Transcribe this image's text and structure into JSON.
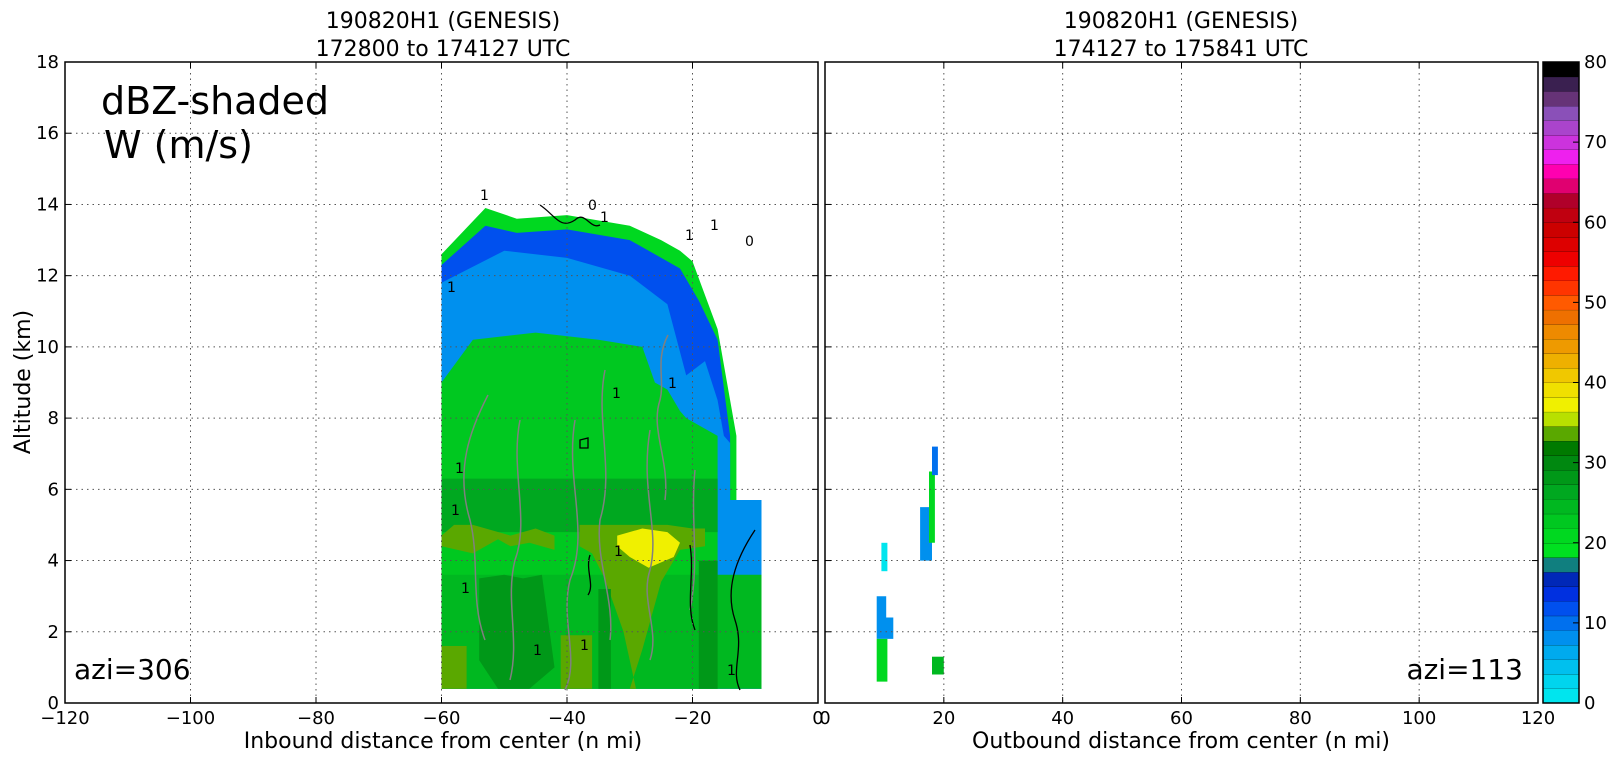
{
  "chart_data": [
    {
      "type": "heatmap",
      "title_line1": "190820H1 (GENESIS)",
      "title_line2": "172800 to 174127 UTC",
      "xlabel": "Inbound distance from center (n mi)",
      "ylabel": "Altitude (km)",
      "xlim": [
        -120,
        0
      ],
      "ylim": [
        0,
        18
      ],
      "xticks": [
        -120,
        -100,
        -80,
        -60,
        -40,
        -20,
        0
      ],
      "xtick_labels": [
        "−120",
        "−100",
        "−80",
        "−60",
        "−40",
        "−20",
        "0"
      ],
      "yticks": [
        0,
        2,
        4,
        6,
        8,
        10,
        12,
        14,
        16,
        18
      ],
      "ytick_labels": [
        "0",
        "2",
        "4",
        "6",
        "8",
        "10",
        "12",
        "14",
        "16",
        "18"
      ],
      "grid": true,
      "annotation_line1": "dBZ-shaded",
      "annotation_line2": "W (m/s)",
      "azimuth_label": "azi=306",
      "contour_labels": [
        "1",
        "1",
        "1",
        "1",
        "1",
        "1",
        "1",
        "1",
        "1",
        "1",
        "1",
        "1",
        "1",
        "1",
        "0",
        "0"
      ],
      "dbz_layers": [
        {
          "dbz": 22,
          "x": [
            -60,
            -53,
            -48,
            -40,
            -30,
            -25,
            -22,
            -20,
            -16,
            -13,
            -13,
            -9,
            -9,
            -60
          ],
          "y": [
            12.6,
            13.9,
            13.6,
            13.7,
            13.4,
            13.0,
            12.7,
            12.4,
            10.5,
            7.5,
            5.7,
            5.7,
            0.4,
            0.4
          ]
        },
        {
          "dbz": 12,
          "x": [
            -60,
            -53,
            -48,
            -40,
            -30,
            -26,
            -22,
            -19,
            -16,
            -14,
            -14,
            -9,
            -9,
            -60
          ],
          "y": [
            12.3,
            13.4,
            13.2,
            13.3,
            13.0,
            12.6,
            12.2,
            11.3,
            10.2,
            7.5,
            5.7,
            5.7,
            0.4,
            0.4
          ]
        },
        {
          "dbz": 8,
          "x": [
            -60,
            -50,
            -40,
            -30,
            -24,
            -21,
            -18,
            -16,
            -15,
            -14,
            -14,
            -9,
            -9,
            -60
          ],
          "y": [
            11.8,
            12.7,
            12.5,
            12.0,
            11.2,
            9.2,
            9.6,
            8.5,
            7.5,
            7.3,
            5.7,
            5.7,
            0.4,
            0.4
          ]
        },
        {
          "dbz": 24,
          "x": [
            -60,
            -55,
            -45,
            -35,
            -28,
            -26,
            -24,
            -22,
            -21,
            -18,
            -16,
            -16,
            -60
          ],
          "y": [
            9.0,
            10.2,
            10.4,
            10.2,
            10.0,
            9.0,
            8.8,
            8.2,
            8.0,
            7.7,
            7.5,
            0.4,
            0.4
          ]
        },
        {
          "dbz": 29,
          "x": [
            -60,
            -16,
            -16,
            -60
          ],
          "y": [
            6.3,
            6.3,
            4.8,
            4.8
          ]
        },
        {
          "dbz": 27,
          "x": [
            -60,
            -9,
            -9,
            -60
          ],
          "y": [
            3.6,
            3.6,
            0.4,
            0.4
          ]
        },
        {
          "dbz": 36,
          "x": [
            -60,
            -58,
            -55,
            -49,
            -45,
            -42,
            -42,
            -46,
            -49,
            -51,
            -55,
            -60
          ],
          "y": [
            4.7,
            5.0,
            5.0,
            4.7,
            4.9,
            4.7,
            4.3,
            4.5,
            4.4,
            4.6,
            4.2,
            4.4
          ]
        },
        {
          "dbz": 36,
          "x": [
            -38,
            -34,
            -30,
            -24,
            -20,
            -18,
            -18,
            -22,
            -25,
            -28,
            -30,
            -29,
            -31,
            -34,
            -36,
            -38
          ],
          "y": [
            5.0,
            5.0,
            5.0,
            5.0,
            4.9,
            4.9,
            4.4,
            4.3,
            3.4,
            1.5,
            0.4,
            0.4,
            2.0,
            3.5,
            4.2,
            4.4
          ]
        },
        {
          "dbz": 41,
          "x": [
            -32,
            -28,
            -24,
            -22,
            -23,
            -27,
            -30,
            -32
          ],
          "y": [
            4.7,
            4.9,
            4.8,
            4.5,
            4.1,
            3.8,
            4.1,
            4.4
          ]
        },
        {
          "dbz": 37,
          "x": [
            -60,
            -56,
            -56,
            -60
          ],
          "y": [
            1.6,
            1.6,
            0.4,
            0.4
          ]
        },
        {
          "dbz": 37,
          "x": [
            -41,
            -36,
            -36,
            -41
          ],
          "y": [
            1.9,
            1.9,
            0.4,
            0.4
          ]
        },
        {
          "dbz": 31,
          "x": [
            -54,
            -50,
            -47,
            -44,
            -42,
            -46,
            -51,
            -54
          ],
          "y": [
            3.5,
            3.6,
            3.5,
            3.6,
            1.0,
            0.4,
            0.4,
            1.2
          ]
        },
        {
          "dbz": 31,
          "x": [
            -35,
            -33,
            -33,
            -35
          ],
          "y": [
            3.2,
            3.2,
            0.4,
            0.4
          ]
        },
        {
          "dbz": 31,
          "x": [
            -19,
            -16,
            -16,
            -19
          ],
          "y": [
            4.0,
            4.0,
            0.4,
            0.4
          ]
        },
        {
          "dbz": 9,
          "x": [
            -15,
            -9,
            -9,
            -15
          ],
          "y": [
            5.7,
            5.7,
            4.8,
            4.8
          ]
        }
      ]
    },
    {
      "type": "heatmap",
      "title_line1": "190820H1 (GENESIS)",
      "title_line2": "174127 to 175841 UTC",
      "xlabel": "Outbound distance from center (n mi)",
      "xlim": [
        0,
        120
      ],
      "ylim": [
        0,
        18
      ],
      "xticks": [
        0,
        20,
        40,
        60,
        80,
        100,
        120
      ],
      "xtick_labels": [
        "0",
        "20",
        "40",
        "60",
        "80",
        "100",
        "120"
      ],
      "grid": true,
      "azimuth_label": "azi=113",
      "dbz_layers": [
        {
          "dbz": 1,
          "x": [
            9.5,
            10.5,
            10.5,
            9.5
          ],
          "y": [
            4.5,
            4.5,
            3.7,
            3.7
          ]
        },
        {
          "dbz": 8,
          "x": [
            8.7,
            10.3,
            10.3,
            11.5,
            11.5,
            8.7
          ],
          "y": [
            3.0,
            3.0,
            2.4,
            2.4,
            1.8,
            1.8
          ]
        },
        {
          "dbz": 23,
          "x": [
            8.7,
            10.5,
            10.5,
            8.7
          ],
          "y": [
            1.8,
            1.8,
            0.6,
            0.6
          ]
        },
        {
          "dbz": 8,
          "x": [
            16.0,
            18.0,
            18.0,
            16.0
          ],
          "y": [
            5.5,
            5.5,
            4.0,
            4.0
          ]
        },
        {
          "dbz": 23,
          "x": [
            17.5,
            18.5,
            18.5,
            17.5
          ],
          "y": [
            6.5,
            6.5,
            4.5,
            4.5
          ]
        },
        {
          "dbz": 10,
          "x": [
            18.0,
            19.0,
            19.0,
            18.0
          ],
          "y": [
            7.2,
            7.2,
            6.4,
            6.4
          ]
        },
        {
          "dbz": 26,
          "x": [
            18.0,
            20.0,
            20.0,
            18.0
          ],
          "y": [
            1.3,
            1.3,
            0.8,
            0.8
          ]
        }
      ]
    },
    {
      "type": "colorbar",
      "min": 0,
      "max": 80,
      "step": 2,
      "tick_labels": [
        "0",
        "10",
        "20",
        "30",
        "40",
        "50",
        "60",
        "70",
        "80"
      ],
      "colors": [
        "#00e5ee",
        "#00d5ee",
        "#00c0ee",
        "#00aaee",
        "#0090ee",
        "#0070ee",
        "#0050ee",
        "#0030e0",
        "#0028b8",
        "#107f7f",
        "#00e020",
        "#00d820",
        "#00c820",
        "#00b820",
        "#00a820",
        "#009818",
        "#008810",
        "#007a00",
        "#5aa800",
        "#b8e000",
        "#f0f000",
        "#f0e000",
        "#f0c800",
        "#eeb000",
        "#ee9a00",
        "#ee8a00",
        "#ee7000",
        "#ff5a00",
        "#ff3500",
        "#ff1a00",
        "#ee0000",
        "#dd0000",
        "#cc0000",
        "#c00010",
        "#b0002a",
        "#e00070",
        "#ff00b0",
        "#ee20ee",
        "#cc33dd",
        "#aa44cc",
        "#8a50b8",
        "#663377",
        "#3a2050",
        "#000000"
      ]
    }
  ]
}
